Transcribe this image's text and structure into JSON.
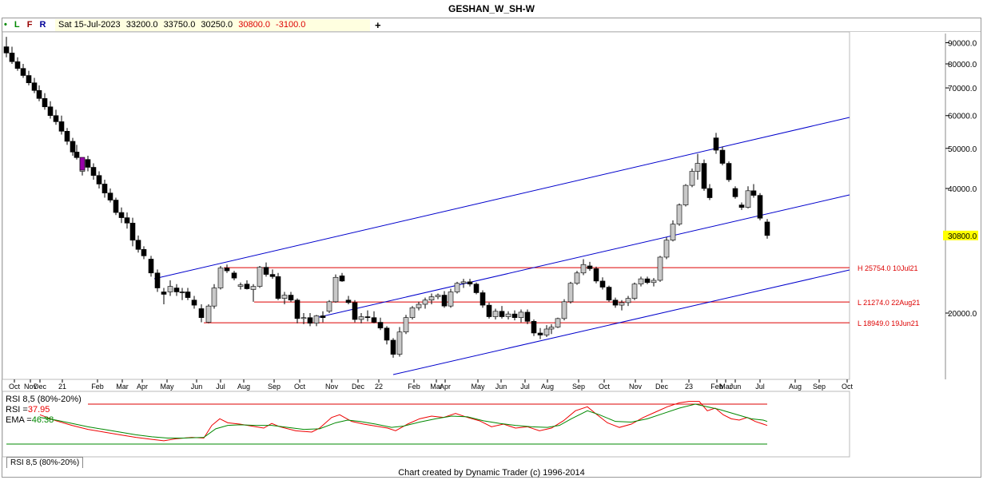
{
  "title": "GESHAN_W_SH-W",
  "toolbar": {
    "dot": "•",
    "L": "L",
    "F": "F",
    "R": "R",
    "date": "Sat 15-Jul-2023",
    "open": "33200.0",
    "high": "33750.0",
    "low": "30250.0",
    "close": "30800.0",
    "change": "-3100.0",
    "plus": "+"
  },
  "colors": {
    "up": "#c8c8c8",
    "down": "#000000",
    "channel": "#0000cc",
    "hline": "#dd0000",
    "rsi": "#ee0000",
    "ema": "#008800",
    "price_label_bg": "#ffff00"
  },
  "chart_data": {
    "type": "candlestick",
    "title": "GESHAN_W_SH-W",
    "y_scale": "log",
    "y_ticks": [
      "90000.0",
      "80000.0",
      "70000.0",
      "60000.0",
      "50000.0",
      "40000.0",
      "30800.0",
      "20000.0"
    ],
    "x_tick_labels": [
      "Oct",
      "Nov",
      "Dec",
      "21",
      "Feb",
      "Mar",
      "Apr",
      "May",
      "Jun",
      "Jul",
      "Aug",
      "Sep",
      "Oct",
      "Nov",
      "Dec",
      "22",
      "Feb",
      "Mar",
      "Apr",
      "May",
      "Jun",
      "Jul",
      "Aug",
      "Sep",
      "Oct",
      "Nov",
      "Dec",
      "23",
      "Feb",
      "Mar",
      "Jun",
      "Jul",
      "Aug",
      "Sep",
      "Oct"
    ],
    "last_price": "30800.0",
    "horizontal_levels": [
      {
        "label": "H 25754.0 10Jul21",
        "value": 25754
      },
      {
        "label": "L 21274.0 22Aug21",
        "value": 21274
      },
      {
        "label": "L 18949.0 19Jun21",
        "value": 18949
      }
    ]
  },
  "rsi_panel": {
    "name": "RSI 8,5 (80%-20%)",
    "rsi_label": "RSI =",
    "rsi_value": "37.95",
    "ema_label": "EMA =",
    "ema_value": "46.38",
    "tab_label": "RSI 8,5 (80%-20%)"
  },
  "footer": "Chart created by Dynamic Trader  (c) 1996-2014"
}
